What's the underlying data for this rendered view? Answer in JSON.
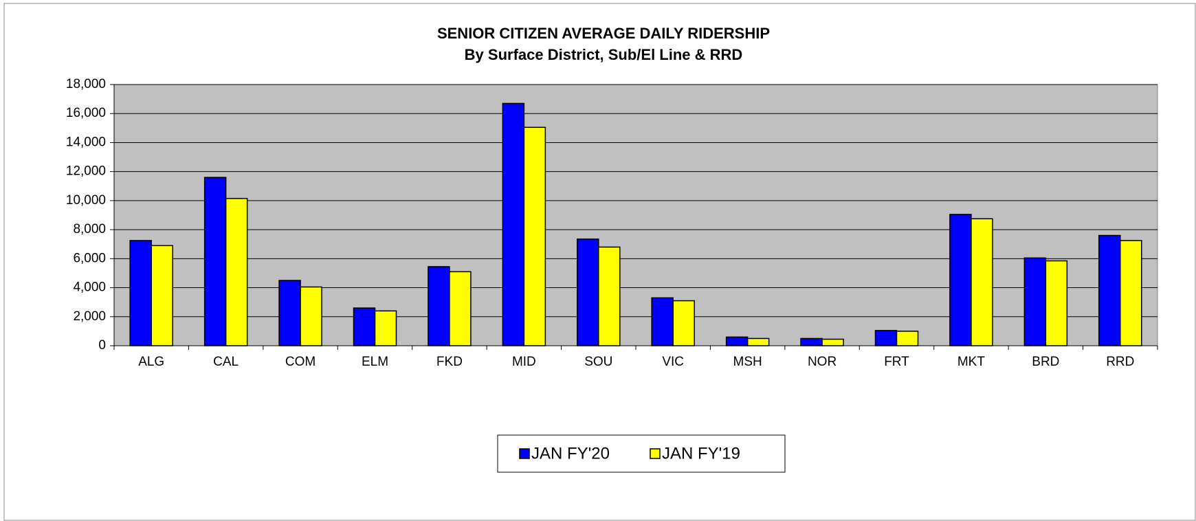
{
  "chart_data": {
    "type": "bar",
    "title": "SENIOR CITIZEN AVERAGE DAILY RIDERSHIP",
    "subtitle": "By Surface District, Sub/El Line & RRD",
    "categories": [
      "ALG",
      "CAL",
      "COM",
      "ELM",
      "FKD",
      "MID",
      "SOU",
      "VIC",
      "MSH",
      "NOR",
      "FRT",
      "MKT",
      "BRD",
      "RRD"
    ],
    "series": [
      {
        "name": "JAN FY'20",
        "color": "#0000ff",
        "values": [
          7250,
          11600,
          4500,
          2600,
          5450,
          16700,
          7350,
          3300,
          600,
          500,
          1050,
          9050,
          6050,
          7600
        ]
      },
      {
        "name": "JAN FY'19",
        "color": "#ffff00",
        "values": [
          6900,
          10150,
          4050,
          2400,
          5100,
          15050,
          6800,
          3100,
          500,
          450,
          1000,
          8750,
          5850,
          7250
        ]
      }
    ],
    "ylim": [
      0,
      18000
    ],
    "yticks": [
      0,
      {
        "value": 2000,
        "label": "2,000"
      },
      {
        "value": 4000,
        "label": "4,000"
      },
      {
        "value": 6000,
        "label": "6,000"
      },
      {
        "value": 8000,
        "label": "8,000"
      },
      {
        "value": 10000,
        "label": "10,000"
      },
      {
        "value": 12000,
        "label": "12,000"
      },
      {
        "value": 14000,
        "label": "14,000"
      },
      {
        "value": 16000,
        "label": "16,000"
      },
      {
        "value": 18000,
        "label": "18,000"
      }
    ],
    "grid": true,
    "legend": "bottom"
  }
}
